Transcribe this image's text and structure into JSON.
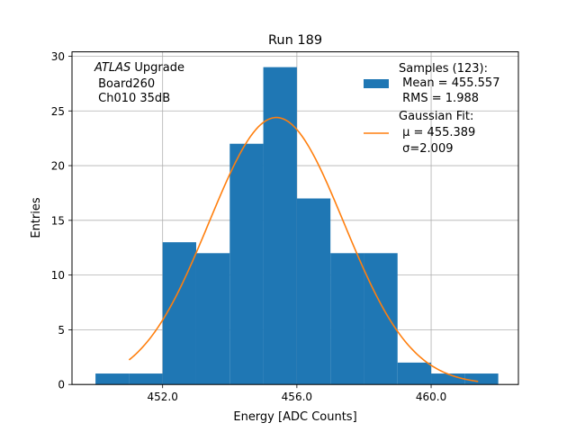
{
  "chart_data": {
    "type": "bar",
    "title": "Run 189",
    "xlabel": "Energy [ADC Counts]",
    "ylabel": "Entries",
    "xlim": [
      449.3,
      462.6
    ],
    "ylim": [
      0,
      30.4
    ],
    "grid": true,
    "x_ticks": [
      452.0,
      456.0,
      460.0
    ],
    "x_tick_labels": [
      "452.0",
      "456.0",
      "460.0"
    ],
    "y_ticks": [
      0,
      5,
      10,
      15,
      20,
      25,
      30
    ],
    "y_tick_labels": [
      "0",
      "5",
      "10",
      "15",
      "20",
      "25",
      "30"
    ],
    "histogram": {
      "bin_edges": [
        450,
        451,
        452,
        453,
        454,
        455,
        456,
        457,
        458,
        459,
        460,
        461,
        462
      ],
      "counts": [
        1,
        1,
        13,
        12,
        22,
        29,
        17,
        12,
        12,
        2,
        1,
        1
      ],
      "color": "#1f77b4"
    },
    "fit": {
      "mu": 455.389,
      "sigma": 2.009,
      "amplitude": 24.4,
      "x_range": [
        451,
        461.4
      ],
      "color": "#ff7f0e"
    },
    "annotation": {
      "experiment": "ATLAS",
      "line1_rest": " Upgrade",
      "line2": " Board260",
      "line3": " Ch010 35dB"
    },
    "legend": {
      "position": "top-right",
      "samples_label": "Samples (123):",
      "samples_mean": " Mean = 455.557",
      "samples_rms": " RMS = 1.988",
      "fit_label": "Gaussian Fit:",
      "fit_mu": " μ = 455.389",
      "fit_sigma": " σ=2.009"
    }
  }
}
